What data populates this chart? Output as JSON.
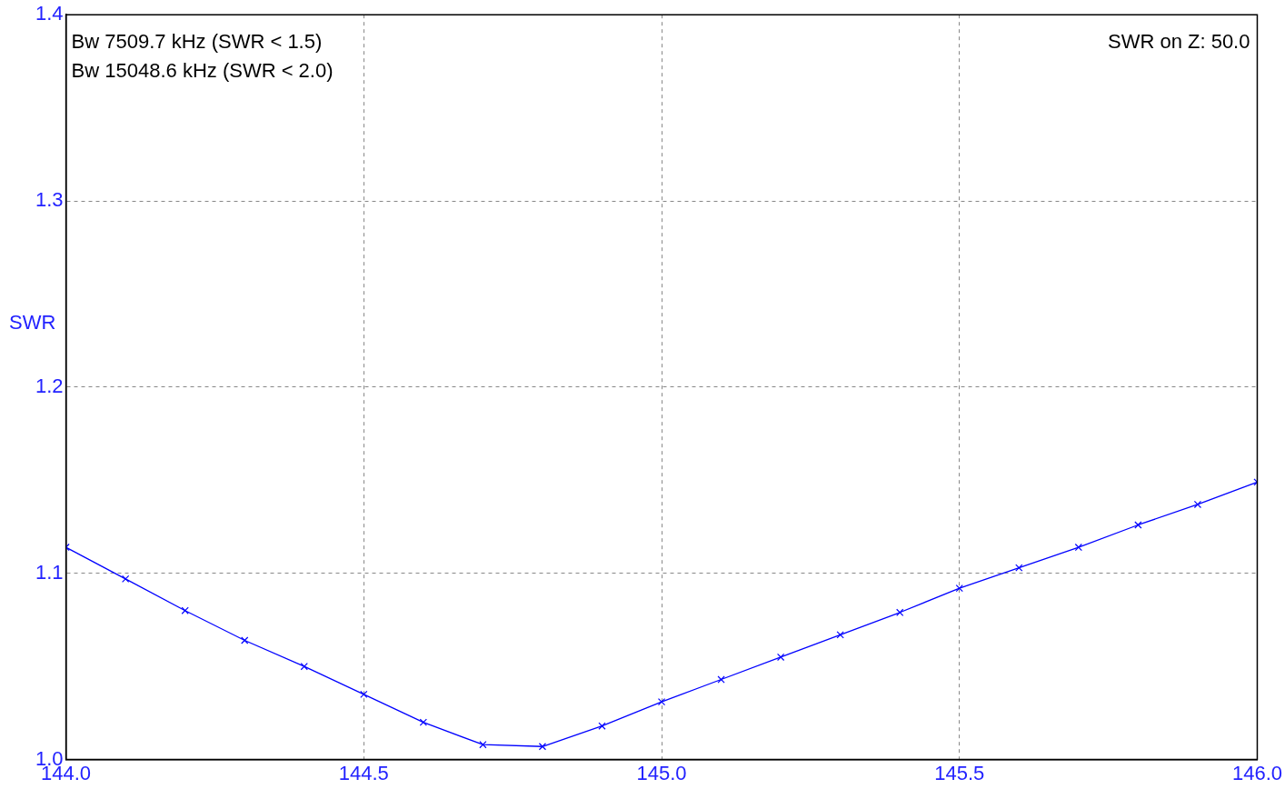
{
  "chart_data": {
    "type": "line",
    "ylabel": "SWR",
    "x": [
      144.0,
      144.1,
      144.2,
      144.3,
      144.4,
      144.5,
      144.6,
      144.7,
      144.8,
      144.9,
      145.0,
      145.1,
      145.2,
      145.3,
      145.4,
      145.5,
      145.6,
      145.7,
      145.8,
      145.9,
      146.0
    ],
    "series": [
      {
        "color": "#0000ff",
        "values": [
          1.114,
          1.097,
          1.08,
          1.064,
          1.05,
          1.035,
          1.02,
          1.008,
          1.007,
          1.018,
          1.031,
          1.043,
          1.055,
          1.067,
          1.079,
          1.092,
          1.103,
          1.114,
          1.126,
          1.137,
          1.149
        ]
      }
    ],
    "xlim": [
      144.0,
      146.0
    ],
    "xticks": [
      {
        "value": 144.0,
        "label": "144.0"
      },
      {
        "value": 144.5,
        "label": "144.5"
      },
      {
        "value": 145.0,
        "label": "145.0"
      },
      {
        "value": 145.5,
        "label": "145.5"
      },
      {
        "value": 146.0,
        "label": "146.0"
      }
    ],
    "ylim": [
      1.0,
      1.4
    ],
    "yticks": [
      {
        "value": 1.0,
        "label": "1.0"
      },
      {
        "value": 1.1,
        "label": "1.1"
      },
      {
        "value": 1.2,
        "label": "1.2"
      },
      {
        "value": 1.3,
        "label": "1.3"
      },
      {
        "value": 1.4,
        "label": "1.4"
      }
    ],
    "annotations": [
      "Bw 7509.7 kHz (SWR < 1.5)",
      "Bw 15048.6 kHz (SWR < 2.0)",
      "SWR on Z: 50.0"
    ],
    "grid": true,
    "legend": false,
    "marker": "cross",
    "line_style": "solid"
  }
}
